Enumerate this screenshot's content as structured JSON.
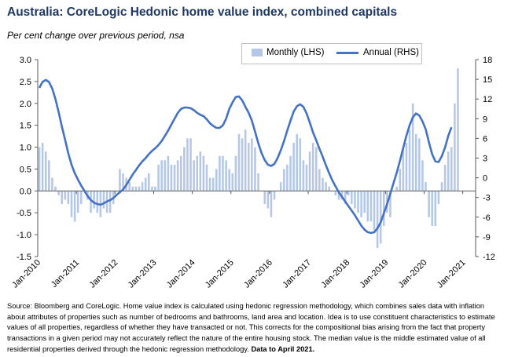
{
  "chart_data": {
    "type": "bar+line",
    "title": "Australia: CoreLogic Hedonic home value index, combined capitals",
    "subtitle": "Per cent change over previous period, nsa",
    "x_ticks": [
      "Jan-2010",
      "Jan-2011",
      "Jan-2012",
      "Jan-2013",
      "Jan-2014",
      "Jan-2015",
      "Jan-2016",
      "Jan-2017",
      "Jan-2018",
      "Jan-2019",
      "Jan-2020",
      "Jan-2021"
    ],
    "y_left": {
      "min": -1.5,
      "max": 3.0,
      "ticks": [
        "3.0",
        "2.5",
        "2.0",
        "1.5",
        "1.0",
        "0.5",
        "0.0",
        "-0.5",
        "-1.0",
        "-1.5"
      ]
    },
    "y_right": {
      "min": -12,
      "max": 18,
      "ticks": [
        "18",
        "15",
        "12",
        "9",
        "6",
        "3",
        "0",
        "-3",
        "-6",
        "-9",
        "-12"
      ]
    },
    "start_month": "Jan-2010",
    "series": [
      {
        "name": "Monthly (LHS)",
        "axis": "left",
        "type": "bar",
        "color": "#b4c7e7",
        "values": [
          1.0,
          1.1,
          0.9,
          0.7,
          0.3,
          0.1,
          -0.1,
          -0.3,
          -0.2,
          -0.3,
          -0.6,
          -0.7,
          -0.5,
          -0.3,
          0.0,
          -0.2,
          -0.5,
          -0.4,
          -0.5,
          -0.6,
          -0.4,
          -0.5,
          -0.5,
          -0.3,
          0.0,
          0.5,
          0.4,
          0.3,
          0.2,
          0.1,
          0.1,
          0.1,
          0.2,
          0.3,
          0.4,
          0.1,
          0.1,
          0.6,
          0.7,
          0.7,
          0.8,
          0.6,
          0.6,
          0.7,
          0.8,
          1.0,
          1.2,
          1.2,
          0.7,
          0.8,
          0.9,
          0.8,
          0.6,
          0.3,
          0.3,
          0.5,
          0.8,
          0.8,
          0.7,
          0.5,
          0.4,
          0.8,
          1.3,
          1.2,
          1.4,
          1.1,
          1.2,
          1.0,
          0.4,
          0.0,
          -0.3,
          -0.4,
          -0.6,
          -0.2,
          0.0,
          0.2,
          0.5,
          0.6,
          0.8,
          1.1,
          1.3,
          1.2,
          0.7,
          0.6,
          0.9,
          1.1,
          1.0,
          0.5,
          0.3,
          0.2,
          0.1,
          0.0,
          -0.1,
          -0.2,
          -0.2,
          -0.3,
          -0.1,
          -0.3,
          -0.4,
          -0.5,
          -0.6,
          -0.5,
          -0.7,
          -0.7,
          -0.9,
          -1.3,
          -1.2,
          -0.8,
          -0.5,
          -0.6,
          0.0,
          0.1,
          0.5,
          1.0,
          1.1,
          1.4,
          2.0,
          1.3,
          1.2,
          0.7,
          0.2,
          -0.6,
          -0.8,
          -0.8,
          -0.3,
          0.2,
          0.6,
          0.9,
          1.0,
          2.0,
          2.8
        ]
      },
      {
        "name": "Annual (RHS)",
        "axis": "right",
        "type": "line",
        "color": "#4472c4",
        "values": [
          13.7,
          14.6,
          14.9,
          14.6,
          13.6,
          12.0,
          10.0,
          7.8,
          5.8,
          3.7,
          2.0,
          0.7,
          -0.3,
          -1.2,
          -2.0,
          -2.8,
          -3.4,
          -3.8,
          -4.0,
          -4.1,
          -3.9,
          -3.6,
          -3.4,
          -3.1,
          -2.6,
          -2.2,
          -1.8,
          -1.1,
          -0.3,
          0.5,
          1.2,
          1.9,
          2.5,
          3.0,
          3.6,
          4.1,
          4.5,
          5.0,
          5.6,
          6.4,
          7.2,
          8.1,
          9.0,
          9.9,
          10.5,
          10.7,
          10.7,
          10.6,
          10.3,
          9.9,
          9.6,
          9.4,
          8.9,
          8.3,
          7.9,
          7.6,
          7.6,
          8.0,
          9.0,
          10.5,
          11.5,
          12.3,
          12.4,
          11.8,
          10.8,
          9.9,
          8.7,
          7.0,
          5.3,
          3.8,
          2.7,
          2.0,
          1.8,
          2.1,
          3.0,
          4.2,
          5.6,
          7.2,
          8.7,
          10.1,
          10.9,
          11.2,
          10.8,
          9.8,
          8.4,
          6.9,
          5.7,
          4.4,
          3.2,
          1.9,
          0.7,
          -0.4,
          -1.3,
          -2.2,
          -2.9,
          -3.6,
          -4.3,
          -5.0,
          -5.7,
          -6.5,
          -7.3,
          -7.9,
          -8.3,
          -8.4,
          -8.3,
          -7.7,
          -6.8,
          -5.4,
          -4.0,
          -2.4,
          -0.8,
          0.8,
          2.6,
          4.5,
          6.4,
          8.0,
          9.2,
          9.8,
          9.5,
          8.6,
          7.4,
          5.4,
          3.6,
          2.5,
          2.4,
          3.3,
          4.6,
          6.4,
          7.7
        ]
      }
    ],
    "legend_position": "top-right",
    "grid": false
  },
  "source": {
    "text": "Source: Bloomberg and CoreLogic. Home value index is calculated using hedonic regression methodology, which combines sales data with inflation about attributes of properties such as number of bedrooms and bathrooms, land area and location.  Idea is to use constituent characteristics to estimate values of all properties, regardless of whether they have transacted or not.  This corrects for the compositional bias arising from the fact that property transactions in a given period may not accurately reflect the nature of the entire housing stock.  The median value is the middle estimated value of all residential properties derived through the hedonic regression methodology.",
    "bold": "Data to April 2021."
  }
}
